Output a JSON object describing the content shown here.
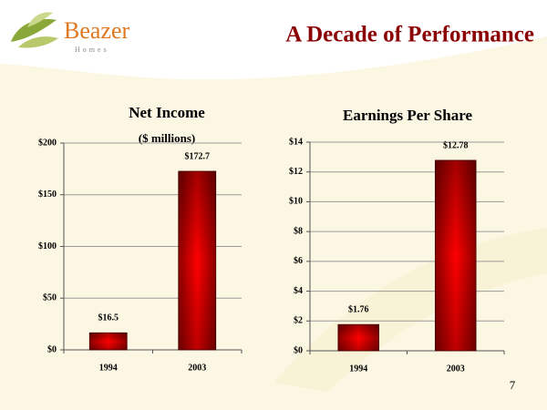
{
  "logo": {
    "name": "Beazer",
    "tagline": "Homes"
  },
  "title": "A Decade of Performance",
  "page_number": "7",
  "chart_data": [
    {
      "type": "bar",
      "title": "Net Income",
      "subtitle": "($ millions)",
      "categories": [
        "1994",
        "2003"
      ],
      "values": [
        16.5,
        172.7
      ],
      "value_labels": [
        "$16.5",
        "$172.7"
      ],
      "color": "#ff0000",
      "ylim": [
        0,
        200
      ],
      "yticks": [
        {
          "value": 0,
          "label": "$0"
        },
        {
          "value": 50,
          "label": "$50"
        },
        {
          "value": 100,
          "label": "$100"
        },
        {
          "value": 150,
          "label": "$150"
        },
        {
          "value": 200,
          "label": "$200"
        }
      ],
      "grid": true
    },
    {
      "type": "bar",
      "title": "Earnings Per Share",
      "categories": [
        "1994",
        "2003"
      ],
      "values": [
        1.76,
        12.78
      ],
      "value_labels": [
        "$1.76",
        "$12.78"
      ],
      "color": "#ff0000",
      "ylim": [
        0,
        14
      ],
      "yticks": [
        {
          "value": 0,
          "label": "$0"
        },
        {
          "value": 2,
          "label": "$2"
        },
        {
          "value": 4,
          "label": "$4"
        },
        {
          "value": 6,
          "label": "$6"
        },
        {
          "value": 8,
          "label": "$8"
        },
        {
          "value": 10,
          "label": "$10"
        },
        {
          "value": 12,
          "label": "$12"
        },
        {
          "value": 14,
          "label": "$14"
        }
      ],
      "grid": true
    }
  ]
}
